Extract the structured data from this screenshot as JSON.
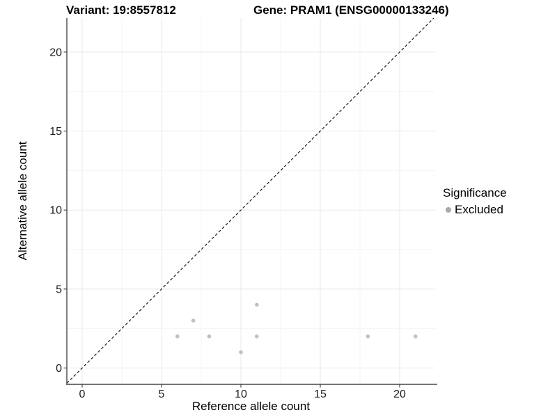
{
  "chart_data": {
    "type": "scatter",
    "titles": {
      "left": "Variant: 19:8557812",
      "right": "Gene: PRAM1 (ENSG00000133246)"
    },
    "xlabel": "Reference allele count",
    "ylabel": "Alternative allele count",
    "x_ticks": [
      0,
      5,
      10,
      15,
      20
    ],
    "y_ticks": [
      0,
      5,
      10,
      15,
      20
    ],
    "x_minor": [
      2.5,
      7.5,
      12.5,
      17.5
    ],
    "y_minor": [
      2.5,
      7.5,
      12.5,
      17.5
    ],
    "xlim": [
      -1,
      22.1
    ],
    "ylim": [
      -1,
      22.1
    ],
    "grid": "on",
    "identity_line": {
      "equation": "y = x",
      "style": "dashed",
      "color": "#1a1a1a"
    },
    "series": [
      {
        "name": "Excluded",
        "color": "#c0c0c0",
        "points": [
          [
            6,
            2
          ],
          [
            7,
            3
          ],
          [
            8,
            2
          ],
          [
            10,
            1
          ],
          [
            11,
            2
          ],
          [
            11,
            4
          ],
          [
            18,
            2
          ],
          [
            21,
            2
          ]
        ]
      }
    ],
    "legend": {
      "title": "Significance",
      "position": "right",
      "entries": [
        {
          "label": "Excluded",
          "color": "#a9a9a9"
        }
      ]
    },
    "colors": {
      "grid_major": "#e9e9e9",
      "grid_minor": "#f5f5f5",
      "axis": "#474747",
      "tick_label": "#1d1d1d",
      "background": "#ffffff"
    }
  }
}
